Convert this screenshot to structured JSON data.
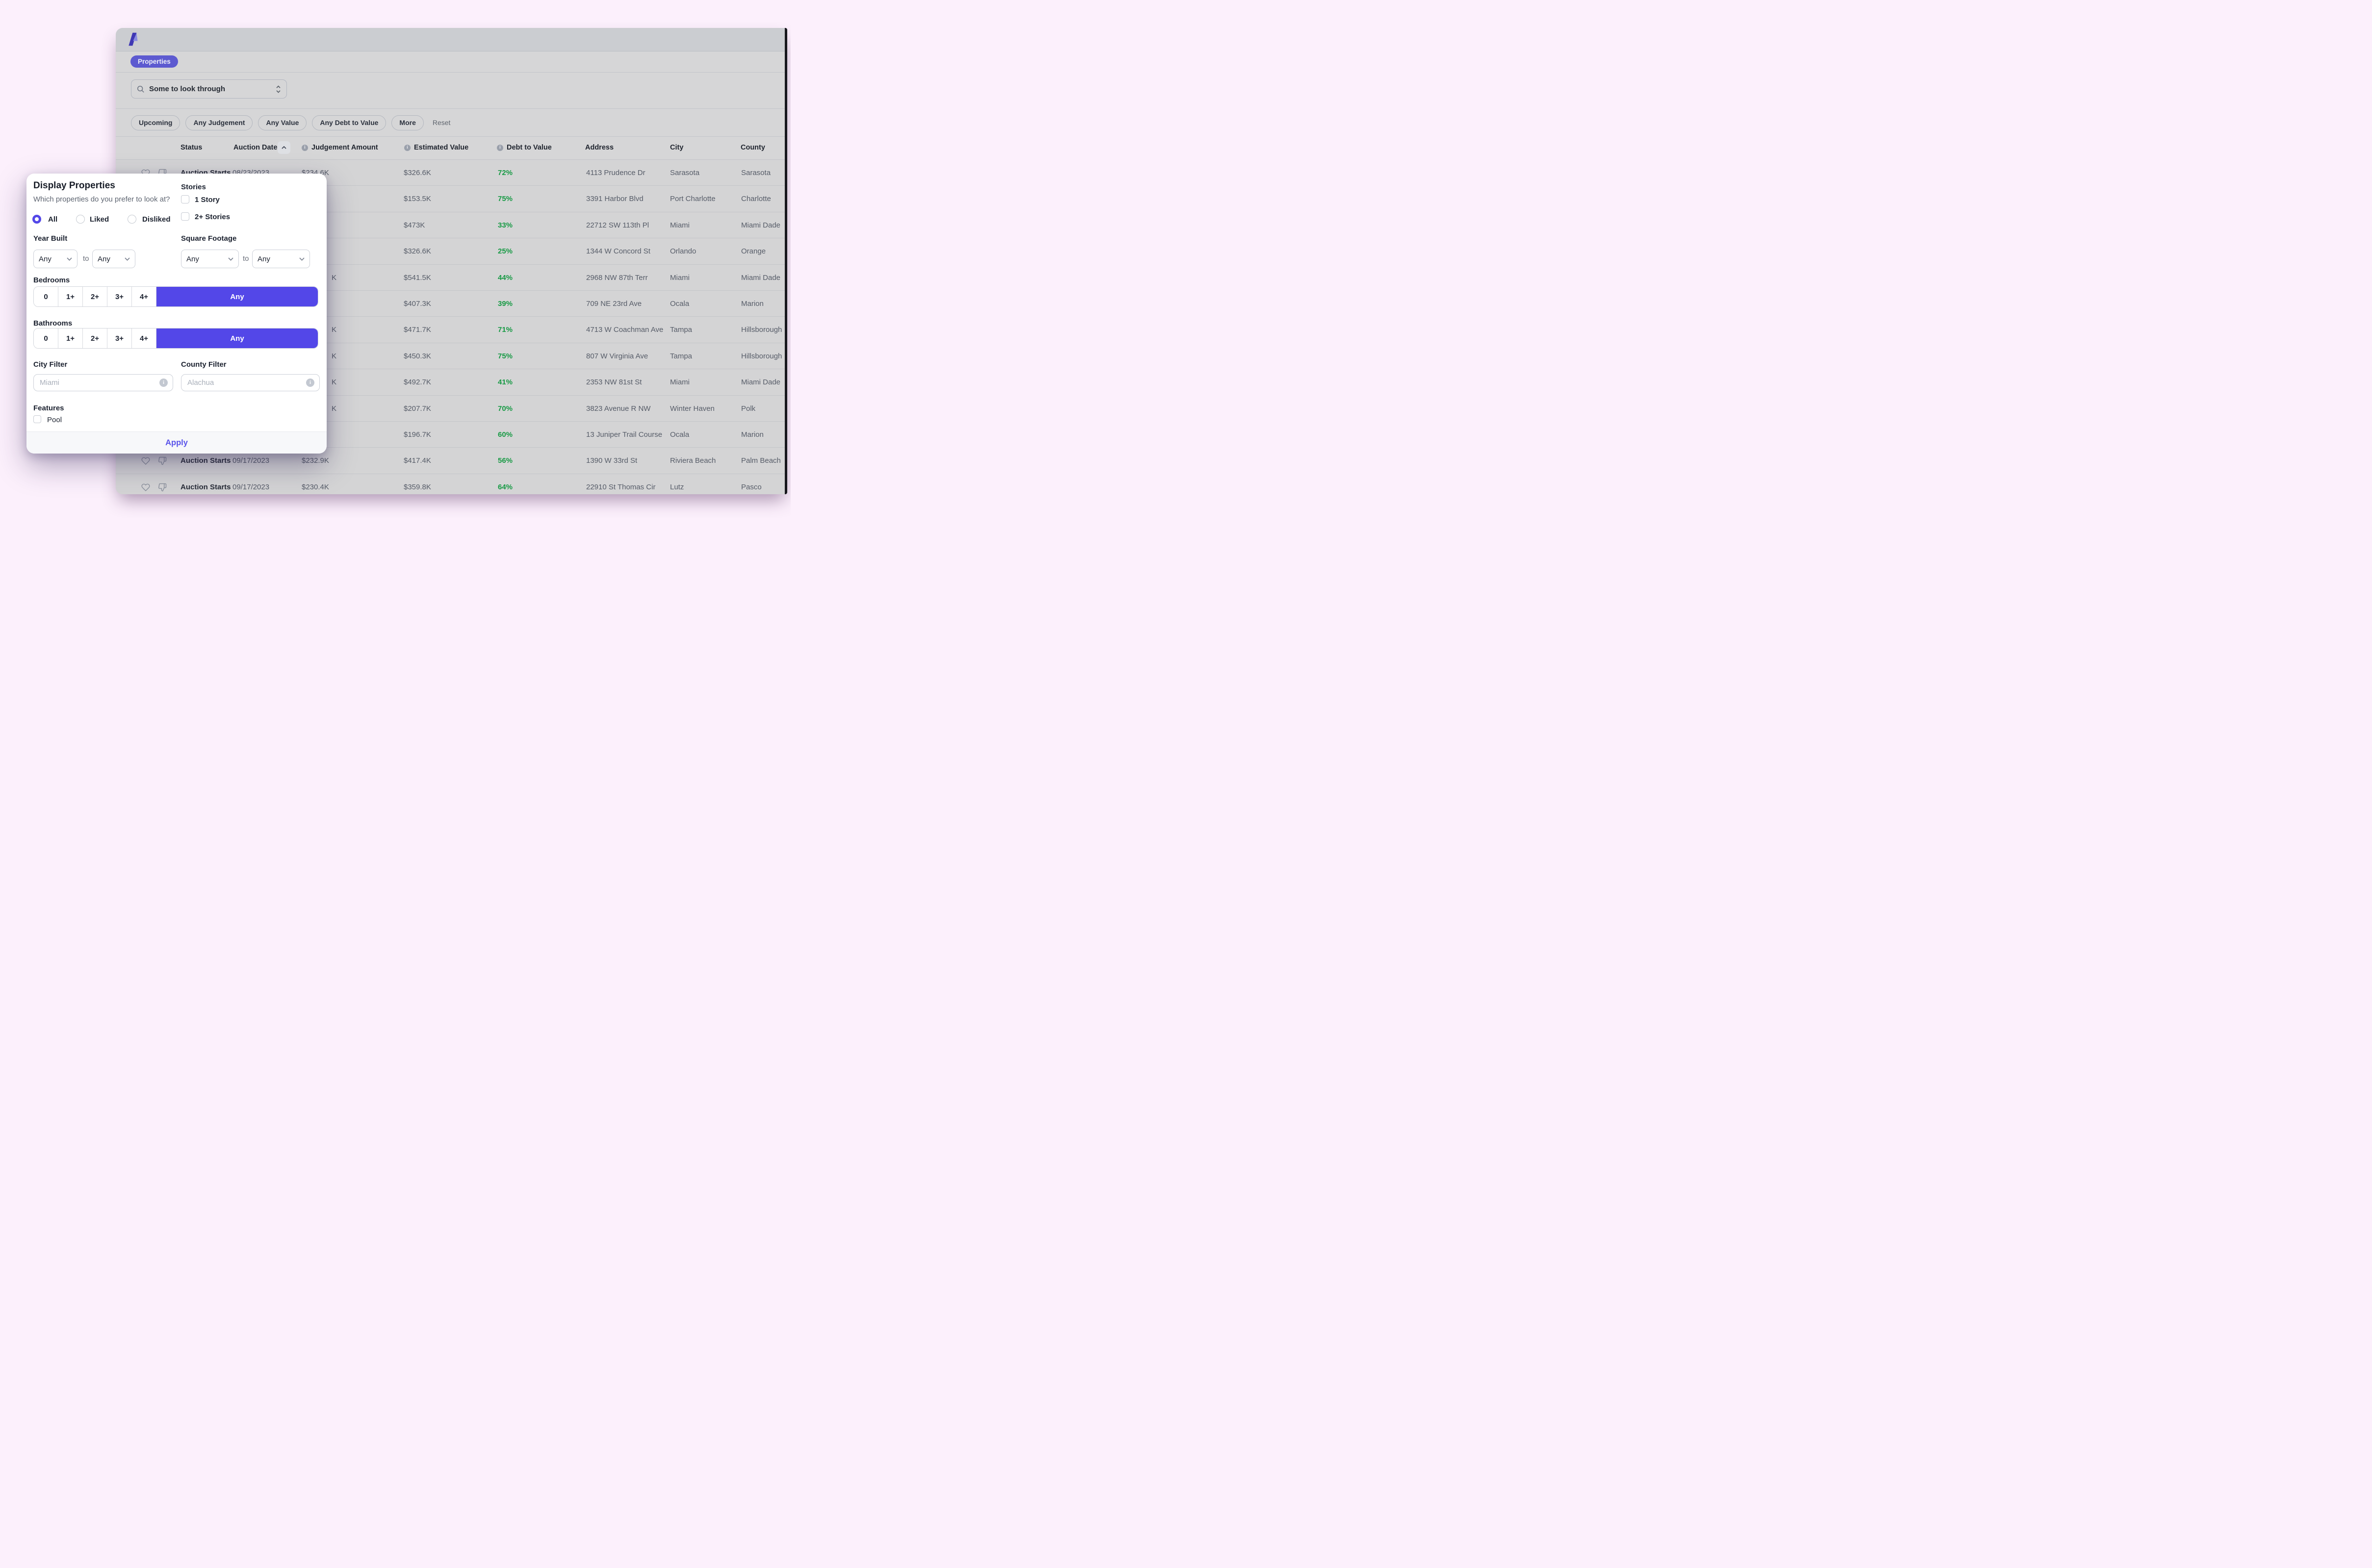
{
  "nav": {
    "properties_label": "Properties"
  },
  "search": {
    "value": "Some to look through"
  },
  "filters": {
    "chips": [
      "Upcoming",
      "Any Judgement",
      "Any Value",
      "Any Debt to Value",
      "More"
    ],
    "reset_label": "Reset"
  },
  "table": {
    "columns": [
      {
        "label": "Status",
        "info": false,
        "sorted": false
      },
      {
        "label": "Auction Date",
        "info": false,
        "sorted": true
      },
      {
        "label": "Judgement Amount",
        "info": true,
        "sorted": false
      },
      {
        "label": "Estimated Value",
        "info": true,
        "sorted": false
      },
      {
        "label": "Debt to Value",
        "info": true,
        "sorted": false
      },
      {
        "label": "Address",
        "info": false,
        "sorted": false
      },
      {
        "label": "City",
        "info": false,
        "sorted": false
      },
      {
        "label": "County",
        "info": false,
        "sorted": false
      }
    ],
    "rows": [
      {
        "status": "Auction Starts",
        "auction_date": "08/23/2023",
        "judgement": "$234.6K",
        "judgement_partial": "",
        "estimated_value": "$326.6K",
        "debt_to_value": "72%",
        "address": "4113 Prudence Dr",
        "city": "Sarasota",
        "county": "Sarasota",
        "icons_visible": true
      },
      {
        "status": "",
        "auction_date": "",
        "judgement": "",
        "judgement_partial": "",
        "estimated_value": "$153.5K",
        "debt_to_value": "75%",
        "address": "3391 Harbor Blvd",
        "city": "Port Charlotte",
        "county": "Charlotte",
        "icons_visible": false
      },
      {
        "status": "",
        "auction_date": "",
        "judgement": "",
        "judgement_partial": "",
        "estimated_value": "$473K",
        "debt_to_value": "33%",
        "address": "22712 SW 113th Pl",
        "city": "Miami",
        "county": "Miami Dade",
        "icons_visible": false
      },
      {
        "status": "",
        "auction_date": "",
        "judgement": "",
        "judgement_partial": "",
        "estimated_value": "$326.6K",
        "debt_to_value": "25%",
        "address": "1344 W Concord St",
        "city": "Orlando",
        "county": "Orange",
        "icons_visible": false
      },
      {
        "status": "",
        "auction_date": "",
        "judgement": "",
        "judgement_partial": "K",
        "estimated_value": "$541.5K",
        "debt_to_value": "44%",
        "address": "2968 NW 87th Terr",
        "city": "Miami",
        "county": "Miami Dade",
        "icons_visible": false
      },
      {
        "status": "",
        "auction_date": "",
        "judgement": "",
        "judgement_partial": "",
        "estimated_value": "$407.3K",
        "debt_to_value": "39%",
        "address": "709 NE 23rd Ave",
        "city": "Ocala",
        "county": "Marion",
        "icons_visible": false
      },
      {
        "status": "",
        "auction_date": "",
        "judgement": "",
        "judgement_partial": "K",
        "estimated_value": "$471.7K",
        "debt_to_value": "71%",
        "address": "4713 W Coachman Ave",
        "city": "Tampa",
        "county": "Hillsborough",
        "icons_visible": false
      },
      {
        "status": "",
        "auction_date": "",
        "judgement": "",
        "judgement_partial": "K",
        "estimated_value": "$450.3K",
        "debt_to_value": "75%",
        "address": "807 W Virginia Ave",
        "city": "Tampa",
        "county": "Hillsborough",
        "icons_visible": false
      },
      {
        "status": "",
        "auction_date": "",
        "judgement": "",
        "judgement_partial": "K",
        "estimated_value": "$492.7K",
        "debt_to_value": "41%",
        "address": "2353 NW 81st St",
        "city": "Miami",
        "county": "Miami Dade",
        "icons_visible": false
      },
      {
        "status": "",
        "auction_date": "",
        "judgement": "",
        "judgement_partial": "K",
        "estimated_value": "$207.7K",
        "debt_to_value": "70%",
        "address": "3823 Avenue R NW",
        "city": "Winter Haven",
        "county": "Polk",
        "icons_visible": false
      },
      {
        "status": "",
        "auction_date": "",
        "judgement": "",
        "judgement_partial": "",
        "estimated_value": "$196.7K",
        "debt_to_value": "60%",
        "address": "13 Juniper Trail Course",
        "city": "Ocala",
        "county": "Marion",
        "icons_visible": false
      },
      {
        "status": "Auction Starts",
        "auction_date": "09/17/2023",
        "judgement": "$232.9K",
        "judgement_partial": "",
        "estimated_value": "$417.4K",
        "debt_to_value": "56%",
        "address": "1390 W 33rd St",
        "city": "Riviera Beach",
        "county": "Palm Beach",
        "icons_visible": true
      },
      {
        "status": "Auction Starts",
        "auction_date": "09/17/2023",
        "judgement": "$230.4K",
        "judgement_partial": "",
        "estimated_value": "$359.8K",
        "debt_to_value": "64%",
        "address": "22910 St Thomas Cir",
        "city": "Lutz",
        "county": "Pasco",
        "icons_visible": true
      }
    ]
  },
  "modal": {
    "title": "Display Properties",
    "subtitle": "Which properties do you prefer to look at?",
    "radios": [
      {
        "label": "All",
        "selected": true
      },
      {
        "label": "Liked",
        "selected": false
      },
      {
        "label": "Disliked",
        "selected": false
      }
    ],
    "stories": {
      "label": "Stories",
      "options": [
        {
          "label": "1 Story",
          "checked": false
        },
        {
          "label": "2+ Stories",
          "checked": false
        }
      ]
    },
    "year_built": {
      "label": "Year Built",
      "from_value": "Any",
      "to_word": "to",
      "to_value": "Any"
    },
    "square_footage": {
      "label": "Square Footage",
      "from_value": "Any",
      "to_word": "to",
      "to_value": "Any"
    },
    "bedrooms": {
      "label": "Bedrooms",
      "options": [
        "0",
        "1+",
        "2+",
        "3+",
        "4+"
      ],
      "selected": "Any"
    },
    "bathrooms": {
      "label": "Bathrooms",
      "options": [
        "0",
        "1+",
        "2+",
        "3+",
        "4+"
      ],
      "selected": "Any"
    },
    "city_filter": {
      "label": "City Filter",
      "placeholder": "Miami"
    },
    "county_filter": {
      "label": "County Filter",
      "placeholder": "Alachua"
    },
    "features": {
      "label": "Features",
      "options": [
        {
          "label": "Pool",
          "checked": false
        }
      ]
    },
    "apply_label": "Apply"
  },
  "colors": {
    "accent": "#5347e8",
    "accent_dim": "#5d5ad0",
    "positive": "#189a45",
    "page_background": "#fcf0fc"
  }
}
